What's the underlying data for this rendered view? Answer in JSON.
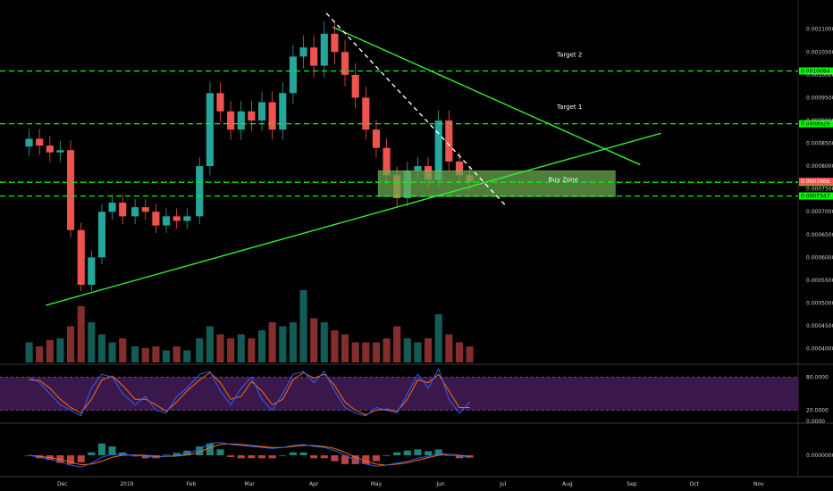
{
  "chart_data": {
    "type": "candlestick",
    "colors": {
      "background": "#000000",
      "bull": "#26a69a",
      "bear": "#ef5350",
      "level": "#00ff00",
      "trendline": "#33ee33",
      "dashed_trend": "#ffffff",
      "buy_zone": "#6aa84f",
      "stoch_band": "#4a1e5e",
      "stoch_k": "#2962ff",
      "stoch_d": "#ff6d00",
      "price_tag": "#ff5252"
    },
    "x_ticks": [
      "Dec",
      "2019",
      "Feb",
      "Mar",
      "Apr",
      "May",
      "Jun",
      "Jul",
      "Aug",
      "Sep",
      "Oct",
      "Nov"
    ],
    "price_axis": {
      "ylim": [
        0.00037,
        0.00116
      ],
      "ticks": [
        "0.0011000",
        "0.0010500",
        "0.0010000",
        "0.0009500",
        "0.0009000",
        "0.0008500",
        "0.0008000",
        "0.0007500",
        "0.0007000",
        "0.0006500",
        "0.0006000",
        "0.0005500",
        "0.0005000",
        "0.0004500",
        "0.0004000"
      ]
    },
    "levels": [
      {
        "name": "Target 2",
        "price": 0.0010084,
        "label": "0.0010084"
      },
      {
        "name": "Target 1",
        "price": 0.0008929,
        "label": "0.0008929"
      },
      {
        "name": "",
        "price": 0.0007644,
        "label": "0.0007644"
      },
      {
        "name": "",
        "price": 0.0007347,
        "label": "0.0007347"
      }
    ],
    "annotations": [
      {
        "text": "Target 2",
        "date": "2019-08-02",
        "price": 0.00104
      },
      {
        "text": "Target 1",
        "date": "2019-08-02",
        "price": 0.000925
      },
      {
        "text": "Buy Zone",
        "date": "2019-07-30",
        "price": 0.000766
      }
    ],
    "current_price": {
      "label": "0.0007666",
      "price": 0.0007666
    },
    "buy_zone": {
      "date_from": "2019-05-02",
      "date_to": "2019-08-24",
      "price_from": 0.000733,
      "price_to": 0.00079
    },
    "trendlines": [
      {
        "name": "rising support",
        "style": "solid",
        "points": [
          [
            "2018-11-23",
            0.000495
          ],
          [
            "2019-09-15",
            0.000872
          ]
        ]
      },
      {
        "name": "falling resistance",
        "style": "solid",
        "points": [
          [
            "2019-04-10",
            0.001105
          ],
          [
            "2019-09-05",
            0.000803
          ]
        ]
      },
      {
        "name": "steep downtrend",
        "style": "dashed",
        "points": [
          [
            "2019-04-07",
            0.001135
          ],
          [
            "2019-07-03",
            0.00071
          ]
        ]
      }
    ],
    "price_series": {
      "dates": [
        "2018-11-15",
        "2018-11-20",
        "2018-11-25",
        "2018-11-30",
        "2018-12-05",
        "2018-12-10",
        "2018-12-15",
        "2018-12-20",
        "2018-12-25",
        "2018-12-30",
        "2019-01-05",
        "2019-01-10",
        "2019-01-15",
        "2019-01-20",
        "2019-01-25",
        "2019-01-30",
        "2019-02-05",
        "2019-02-10",
        "2019-02-15",
        "2019-02-20",
        "2019-02-25",
        "2019-03-02",
        "2019-03-07",
        "2019-03-12",
        "2019-03-17",
        "2019-03-22",
        "2019-03-27",
        "2019-04-01",
        "2019-04-06",
        "2019-04-11",
        "2019-04-16",
        "2019-04-21",
        "2019-04-26",
        "2019-05-01",
        "2019-05-06",
        "2019-05-11",
        "2019-05-16",
        "2019-05-21",
        "2019-05-26",
        "2019-05-31",
        "2019-06-05",
        "2019-06-10",
        "2019-06-15"
      ],
      "close": [
        0.00086,
        0.000845,
        0.00083,
        0.000835,
        0.00066,
        0.00054,
        0.0006,
        0.0007,
        0.00072,
        0.00069,
        0.00071,
        0.0007,
        0.00067,
        0.00069,
        0.00068,
        0.00069,
        0.0008,
        0.00096,
        0.00092,
        0.00088,
        0.00092,
        0.0009,
        0.00094,
        0.00088,
        0.00096,
        0.00104,
        0.00106,
        0.00102,
        0.00109,
        0.00105,
        0.001,
        0.00095,
        0.00088,
        0.00084,
        0.00078,
        0.00073,
        0.00079,
        0.0008,
        0.00077,
        0.0009,
        0.00081,
        0.00078,
        0.000766
      ]
    },
    "volume": [
      0.25,
      0.2,
      0.28,
      0.3,
      0.45,
      0.7,
      0.5,
      0.35,
      0.25,
      0.3,
      0.2,
      0.18,
      0.2,
      0.15,
      0.2,
      0.15,
      0.3,
      0.45,
      0.35,
      0.3,
      0.35,
      0.3,
      0.4,
      0.5,
      0.45,
      0.5,
      0.9,
      0.55,
      0.5,
      0.4,
      0.35,
      0.25,
      0.25,
      0.25,
      0.3,
      0.45,
      0.3,
      0.25,
      0.3,
      0.6,
      0.35,
      0.25,
      0.2
    ],
    "stochastic": {
      "ticks": [
        "80.0000",
        "20.0000",
        "0.0000"
      ],
      "band": [
        20,
        80
      ],
      "k": [
        80,
        70,
        50,
        30,
        20,
        10,
        60,
        85,
        80,
        50,
        30,
        45,
        20,
        15,
        45,
        60,
        85,
        90,
        55,
        30,
        60,
        80,
        40,
        20,
        50,
        85,
        90,
        70,
        90,
        55,
        25,
        15,
        10,
        25,
        20,
        15,
        50,
        85,
        60,
        95,
        40,
        15,
        35
      ],
      "d": [
        75,
        74,
        60,
        40,
        25,
        15,
        40,
        75,
        82,
        65,
        40,
        40,
        30,
        18,
        35,
        55,
        75,
        88,
        70,
        40,
        45,
        72,
        55,
        30,
        40,
        75,
        88,
        78,
        85,
        65,
        35,
        20,
        12,
        20,
        22,
        18,
        40,
        75,
        70,
        85,
        55,
        25,
        25
      ]
    },
    "macd": {
      "ticks": [
        "0.0000000"
      ],
      "macd": [
        0,
        -0.1,
        -0.2,
        -0.35,
        -0.5,
        -0.6,
        -0.4,
        -0.1,
        0.05,
        0.05,
        0.0,
        -0.05,
        -0.1,
        -0.05,
        0.0,
        0.1,
        0.3,
        0.6,
        0.65,
        0.55,
        0.5,
        0.45,
        0.4,
        0.35,
        0.4,
        0.5,
        0.55,
        0.45,
        0.4,
        0.25,
        0.0,
        -0.25,
        -0.45,
        -0.55,
        -0.5,
        -0.4,
        -0.3,
        -0.15,
        -0.05,
        0.1,
        0.05,
        -0.05,
        -0.1
      ],
      "signal": [
        0,
        -0.05,
        -0.12,
        -0.22,
        -0.35,
        -0.48,
        -0.45,
        -0.3,
        -0.1,
        0.0,
        0.02,
        0.0,
        -0.05,
        -0.06,
        -0.04,
        0.02,
        0.15,
        0.4,
        0.55,
        0.58,
        0.55,
        0.5,
        0.45,
        0.4,
        0.4,
        0.45,
        0.5,
        0.5,
        0.45,
        0.35,
        0.15,
        -0.1,
        -0.3,
        -0.45,
        -0.5,
        -0.45,
        -0.38,
        -0.25,
        -0.12,
        0.0,
        0.05,
        0.0,
        -0.06
      ]
    }
  }
}
